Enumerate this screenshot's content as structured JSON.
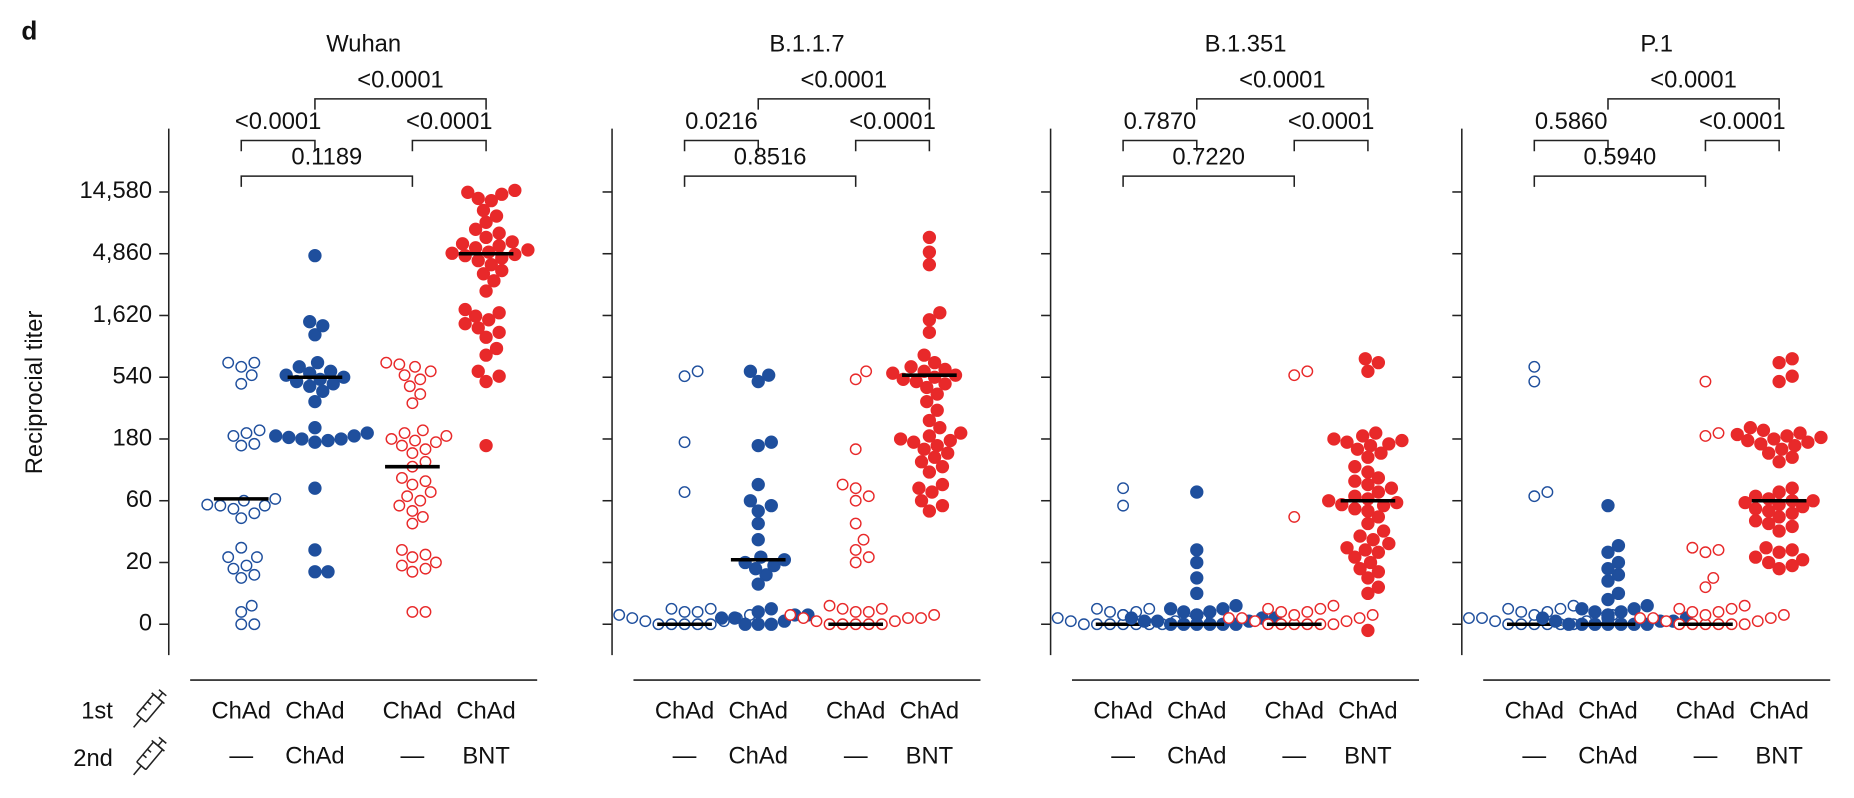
{
  "panel_label": "d",
  "y_label": "Reciprocial titer",
  "dose_rows": [
    "1st",
    "2nd"
  ],
  "chart_data": [
    {
      "type": "strip",
      "title": "Wuhan",
      "first_dose": [
        "ChAd",
        "ChAd",
        "ChAd",
        "ChAd"
      ],
      "second_dose": [
        "—",
        "ChAd",
        "—",
        "BNT"
      ],
      "yscale": "symlog",
      "log_base": 3,
      "linthresh": 20,
      "ylim": [
        -10,
        45000
      ],
      "tick_labels": true,
      "yticks": [
        0,
        20,
        60,
        180,
        540,
        {
          "value": 1620,
          "label": "1,620"
        },
        {
          "value": 4860,
          "label": "4,860"
        },
        {
          "value": 14580,
          "label": "14,580"
        }
      ],
      "groups": [
        {
          "color": "#1f4f9d",
          "filled": false,
          "center": 62,
          "values": [
            700,
            650,
            700,
            560,
            480,
            210,
            200,
            190,
            165,
            160,
            62,
            60,
            56,
            55,
            52,
            48,
            44,
            55,
            26,
            22,
            22,
            19,
            18,
            16,
            15,
            6,
            4,
            0,
            0
          ]
        },
        {
          "color": "#1f4f9d",
          "filled": true,
          "center": 540,
          "values": [
            4700,
            1450,
            1350,
            1150,
            700,
            650,
            600,
            580,
            560,
            540,
            520,
            500,
            480,
            460,
            420,
            350,
            220,
            200,
            190,
            190,
            185,
            180,
            180,
            175,
            170,
            75,
            25,
            17,
            17
          ]
        },
        {
          "color": "#e8292a",
          "filled": false,
          "center": 110,
          "values": [
            700,
            680,
            650,
            600,
            560,
            520,
            460,
            400,
            340,
            210,
            200,
            190,
            180,
            175,
            170,
            160,
            150,
            140,
            120,
            110,
            90,
            85,
            80,
            70,
            65,
            60,
            55,
            50,
            45,
            40,
            25,
            23,
            22,
            20,
            19,
            18,
            17,
            4,
            4
          ]
        },
        {
          "color": "#e8292a",
          "filled": true,
          "center": 4860,
          "values": [
            15000,
            14500,
            14000,
            13000,
            12500,
            10500,
            9500,
            8500,
            7500,
            7000,
            6500,
            6000,
            5800,
            5600,
            5400,
            5200,
            5000,
            4900,
            4800,
            4700,
            4500,
            4300,
            4000,
            3600,
            3400,
            3000,
            2500,
            1800,
            1700,
            1600,
            1500,
            1400,
            1300,
            1200,
            1100,
            900,
            800,
            600,
            550,
            500,
            160
          ]
        }
      ],
      "comparisons": [
        {
          "groups": [
            1,
            3
          ],
          "label": "<0.0001"
        },
        {
          "groups": [
            0,
            1
          ],
          "label": "<0.0001"
        },
        {
          "groups": [
            2,
            3
          ],
          "label": "<0.0001"
        },
        {
          "groups": [
            0,
            2
          ],
          "label": "0.1189"
        }
      ]
    },
    {
      "type": "strip",
      "title": "B.1.1.7",
      "first_dose": [
        "ChAd",
        "ChAd",
        "ChAd",
        "ChAd"
      ],
      "second_dose": [
        "—",
        "ChAd",
        "—",
        "BNT"
      ],
      "yscale": "symlog",
      "log_base": 3,
      "linthresh": 20,
      "ylim": [
        -10,
        45000
      ],
      "tick_labels": false,
      "yticks": [
        0,
        20,
        60,
        180,
        540,
        {
          "value": 1620,
          "label": "1,620"
        },
        {
          "value": 4860,
          "label": "4,860"
        },
        {
          "value": 14580,
          "label": "14,580"
        }
      ],
      "groups": [
        {
          "color": "#1f4f9d",
          "filled": false,
          "center": 0,
          "values": [
            600,
            550,
            170,
            70,
            5,
            5,
            4,
            4,
            3,
            3,
            2,
            2,
            1,
            1,
            0,
            0,
            0,
            0,
            0
          ]
        },
        {
          "color": "#1f4f9d",
          "filled": true,
          "center": 21,
          "values": [
            600,
            560,
            500,
            170,
            160,
            80,
            60,
            55,
            50,
            40,
            30,
            22,
            21,
            20,
            19,
            18,
            16,
            13,
            5,
            4,
            3,
            3,
            2,
            2,
            1,
            0,
            0,
            0
          ]
        },
        {
          "color": "#e8292a",
          "filled": false,
          "center": 0,
          "values": [
            600,
            520,
            150,
            80,
            75,
            65,
            60,
            40,
            30,
            25,
            22,
            20,
            6,
            5,
            5,
            4,
            4,
            3,
            3,
            2,
            2,
            2,
            1,
            1,
            0,
            0,
            0,
            0,
            0
          ]
        },
        {
          "color": "#e8292a",
          "filled": true,
          "center": 560,
          "values": [
            6500,
            5000,
            4000,
            1700,
            1500,
            1200,
            800,
            700,
            650,
            620,
            600,
            580,
            560,
            540,
            520,
            500,
            480,
            450,
            400,
            350,
            300,
            250,
            220,
            200,
            190,
            180,
            175,
            170,
            160,
            150,
            140,
            130,
            120,
            110,
            100,
            80,
            75,
            70,
            60,
            55,
            50
          ]
        }
      ],
      "comparisons": [
        {
          "groups": [
            1,
            3
          ],
          "label": "<0.0001"
        },
        {
          "groups": [
            0,
            1
          ],
          "label": "0.0216"
        },
        {
          "groups": [
            2,
            3
          ],
          "label": "<0.0001"
        },
        {
          "groups": [
            0,
            2
          ],
          "label": "0.8516"
        }
      ]
    },
    {
      "type": "strip",
      "title": "B.1.351",
      "first_dose": [
        "ChAd",
        "ChAd",
        "ChAd",
        "ChAd"
      ],
      "second_dose": [
        "—",
        "ChAd",
        "—",
        "BNT"
      ],
      "yscale": "symlog",
      "log_base": 3,
      "linthresh": 20,
      "ylim": [
        -10,
        45000
      ],
      "tick_labels": false,
      "yticks": [
        0,
        20,
        60,
        180,
        540,
        {
          "value": 1620,
          "label": "1,620"
        },
        {
          "value": 4860,
          "label": "4,860"
        },
        {
          "value": 14580,
          "label": "14,580"
        }
      ],
      "groups": [
        {
          "color": "#1f4f9d",
          "filled": false,
          "center": 0,
          "values": [
            75,
            55,
            5,
            5,
            4,
            4,
            3,
            3,
            2,
            2,
            1,
            1,
            1,
            0,
            0,
            0,
            0,
            0,
            0,
            0
          ]
        },
        {
          "color": "#1f4f9d",
          "filled": true,
          "center": 0,
          "values": [
            70,
            25,
            20,
            15,
            10,
            6,
            5,
            5,
            4,
            4,
            3,
            3,
            3,
            2,
            2,
            2,
            1,
            1,
            1,
            0,
            0,
            0,
            0,
            0,
            0
          ]
        },
        {
          "color": "#e8292a",
          "filled": false,
          "center": 0,
          "values": [
            560,
            600,
            45,
            6,
            5,
            5,
            4,
            4,
            3,
            3,
            2,
            2,
            2,
            1,
            1,
            0,
            0,
            0,
            0,
            0,
            0
          ]
        },
        {
          "color": "#e8292a",
          "filled": true,
          "center": 60,
          "values": [
            750,
            700,
            600,
            200,
            190,
            180,
            175,
            170,
            165,
            160,
            150,
            140,
            130,
            110,
            100,
            90,
            85,
            80,
            75,
            70,
            65,
            62,
            60,
            58,
            56,
            55,
            52,
            50,
            45,
            40,
            35,
            32,
            30,
            28,
            26,
            25,
            24,
            22,
            20,
            18,
            17,
            15,
            12,
            10,
            -2
          ]
        }
      ],
      "comparisons": [
        {
          "groups": [
            1,
            3
          ],
          "label": "<0.0001"
        },
        {
          "groups": [
            0,
            1
          ],
          "label": "0.7870"
        },
        {
          "groups": [
            2,
            3
          ],
          "label": "<0.0001"
        },
        {
          "groups": [
            0,
            2
          ],
          "label": "0.7220"
        }
      ]
    },
    {
      "type": "strip",
      "title": "P.1",
      "first_dose": [
        "ChAd",
        "ChAd",
        "ChAd",
        "ChAd"
      ],
      "second_dose": [
        "—",
        "ChAd",
        "—",
        "BNT"
      ],
      "yscale": "symlog",
      "log_base": 3,
      "linthresh": 20,
      "ylim": [
        -10,
        45000
      ],
      "tick_labels": false,
      "yticks": [
        0,
        20,
        60,
        180,
        540,
        {
          "value": 1620,
          "label": "1,620"
        },
        {
          "value": 4860,
          "label": "4,860"
        },
        {
          "value": 14580,
          "label": "14,580"
        }
      ],
      "groups": [
        {
          "color": "#1f4f9d",
          "filled": false,
          "center": 0,
          "values": [
            650,
            500,
            70,
            65,
            6,
            5,
            5,
            4,
            4,
            3,
            3,
            2,
            2,
            2,
            1,
            1,
            0,
            0,
            0,
            0,
            0,
            0
          ]
        },
        {
          "color": "#1f4f9d",
          "filled": true,
          "center": 0,
          "values": [
            55,
            27,
            24,
            20,
            18,
            16,
            14,
            10,
            8,
            6,
            5,
            5,
            4,
            4,
            3,
            3,
            3,
            2,
            2,
            2,
            1,
            1,
            1,
            0,
            0,
            0,
            0,
            0,
            0,
            0
          ]
        },
        {
          "color": "#e8292a",
          "filled": false,
          "center": 0,
          "values": [
            500,
            200,
            190,
            26,
            25,
            24,
            15,
            12,
            6,
            5,
            5,
            4,
            4,
            3,
            3,
            2,
            2,
            2,
            1,
            1,
            0,
            0,
            0,
            0,
            0,
            0
          ]
        },
        {
          "color": "#e8292a",
          "filled": true,
          "center": 60,
          "values": [
            750,
            700,
            550,
            500,
            220,
            210,
            200,
            195,
            190,
            185,
            180,
            175,
            170,
            165,
            160,
            150,
            140,
            130,
            120,
            75,
            70,
            65,
            62,
            60,
            60,
            58,
            56,
            54,
            52,
            50,
            48,
            45,
            42,
            40,
            38,
            35,
            26,
            25,
            24,
            22,
            21,
            20,
            19,
            18
          ]
        }
      ],
      "comparisons": [
        {
          "groups": [
            1,
            3
          ],
          "label": "<0.0001"
        },
        {
          "groups": [
            0,
            1
          ],
          "label": "0.5860"
        },
        {
          "groups": [
            2,
            3
          ],
          "label": "<0.0001"
        },
        {
          "groups": [
            0,
            2
          ],
          "label": "0.5940"
        }
      ]
    }
  ]
}
